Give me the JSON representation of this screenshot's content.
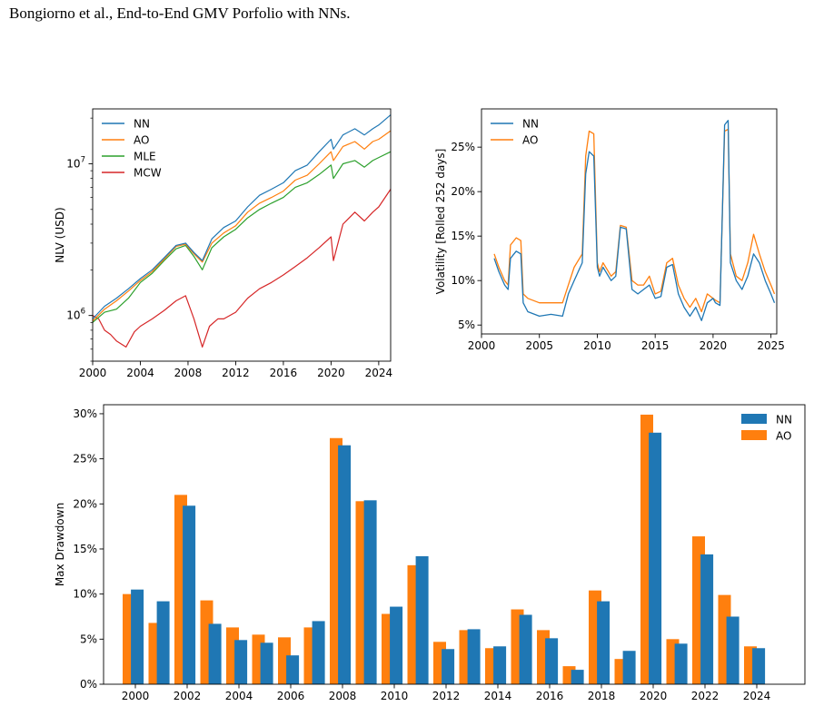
{
  "header": {
    "text": "Bongiorno et al., End-to-End GMV Porfolio with NNs."
  },
  "colors": {
    "NN": "#1f77b4",
    "AO": "#ff7f0e",
    "MLE": "#2ca02c",
    "MCW": "#d62728"
  },
  "chart_data": [
    {
      "id": "nlv",
      "type": "line",
      "ylabel": "NLV (USD)",
      "yscale": "log",
      "xlim": [
        2000,
        2025
      ],
      "ylim": [
        500000,
        23000000
      ],
      "xticks": [
        "2000",
        "2004",
        "2008",
        "2012",
        "2016",
        "2020",
        "2024"
      ],
      "yticks": [
        "10^6",
        "10^7"
      ],
      "legend_position": "top-left",
      "series": [
        {
          "name": "NN",
          "x": [
            2000,
            2001,
            2002,
            2003,
            2004,
            2005,
            2006,
            2007,
            2007.8,
            2008.5,
            2009.2,
            2010,
            2011,
            2012,
            2013,
            2014,
            2015,
            2016,
            2017,
            2018,
            2019,
            2020,
            2020.2,
            2021,
            2022,
            2022.8,
            2023.5,
            2024,
            2025
          ],
          "y": [
            950000,
            1150000,
            1300000,
            1500000,
            1750000,
            2000000,
            2400000,
            2900000,
            3000000,
            2600000,
            2300000,
            3200000,
            3800000,
            4200000,
            5200000,
            6200000,
            6800000,
            7500000,
            9000000,
            9800000,
            12000000,
            14500000,
            12500000,
            15500000,
            17000000,
            15500000,
            17000000,
            18000000,
            21000000
          ]
        },
        {
          "name": "AO",
          "x": [
            2000,
            2001,
            2002,
            2003,
            2004,
            2005,
            2006,
            2007,
            2007.8,
            2008.5,
            2009.2,
            2010,
            2011,
            2012,
            2013,
            2014,
            2015,
            2016,
            2017,
            2018,
            2019,
            2020,
            2020.2,
            2021,
            2022,
            2022.8,
            2023.5,
            2024,
            2025
          ],
          "y": [
            920000,
            1100000,
            1250000,
            1450000,
            1700000,
            1950000,
            2350000,
            2850000,
            2950000,
            2550000,
            2250000,
            3000000,
            3500000,
            3900000,
            4800000,
            5500000,
            6000000,
            6600000,
            7800000,
            8400000,
            10000000,
            12000000,
            10500000,
            13000000,
            14000000,
            12500000,
            14000000,
            14500000,
            16500000
          ]
        },
        {
          "name": "MLE",
          "x": [
            2000,
            2001,
            2002,
            2003,
            2004,
            2005,
            2006,
            2007,
            2007.8,
            2008.5,
            2009.2,
            2010,
            2011,
            2012,
            2013,
            2014,
            2015,
            2016,
            2017,
            2018,
            2019,
            2020,
            2020.2,
            2021,
            2022,
            2022.8,
            2023.5,
            2024,
            2025
          ],
          "y": [
            900000,
            1050000,
            1100000,
            1300000,
            1650000,
            1900000,
            2300000,
            2750000,
            2900000,
            2450000,
            2000000,
            2800000,
            3300000,
            3700000,
            4400000,
            5000000,
            5500000,
            6000000,
            7000000,
            7500000,
            8500000,
            9800000,
            8000000,
            10000000,
            10500000,
            9500000,
            10500000,
            11000000,
            12000000
          ]
        },
        {
          "name": "MCW",
          "x": [
            2000,
            2000.5,
            2001,
            2001.5,
            2002,
            2002.8,
            2003.5,
            2004,
            2005,
            2006,
            2007,
            2007.8,
            2008.5,
            2009.2,
            2009.8,
            2010.5,
            2011,
            2012,
            2013,
            2014,
            2015,
            2016,
            2017,
            2018,
            2019,
            2020,
            2020.2,
            2021,
            2022,
            2022.8,
            2023.5,
            2024,
            2025
          ],
          "y": [
            1000000,
            950000,
            800000,
            750000,
            680000,
            620000,
            780000,
            850000,
            950000,
            1080000,
            1250000,
            1350000,
            950000,
            620000,
            850000,
            950000,
            950000,
            1050000,
            1300000,
            1500000,
            1650000,
            1850000,
            2100000,
            2400000,
            2800000,
            3300000,
            2300000,
            4000000,
            4800000,
            4200000,
            4800000,
            5200000,
            6800000
          ]
        }
      ]
    },
    {
      "id": "volatility",
      "type": "line",
      "ylabel": "Volatility [Rolled 252 days]",
      "xlim": [
        2000,
        2025.5
      ],
      "ylim": [
        4.0,
        29.3
      ],
      "xticks": [
        "2000",
        "2005",
        "2010",
        "2015",
        "2020",
        "2025"
      ],
      "yticks": [
        "5%",
        "10%",
        "15%",
        "20%",
        "25%"
      ],
      "legend_position": "top-left",
      "series": [
        {
          "name": "NN",
          "x": [
            2001.1,
            2001.5,
            2002,
            2002.3,
            2002.5,
            2003,
            2003.4,
            2003.6,
            2004,
            2005,
            2006,
            2007,
            2007.5,
            2008,
            2008.7,
            2009,
            2009.3,
            2009.7,
            2010,
            2010.2,
            2010.5,
            2011.2,
            2011.6,
            2012,
            2012.5,
            2013,
            2013.5,
            2014,
            2014.5,
            2015,
            2015.5,
            2016,
            2016.5,
            2017,
            2017.5,
            2018,
            2018.5,
            2019,
            2019.5,
            2020,
            2020.2,
            2020.6,
            2021,
            2021.3,
            2021.5,
            2022,
            2022.5,
            2023,
            2023.5,
            2024,
            2024.5,
            2025,
            2025.3
          ],
          "y": [
            12.5,
            11.0,
            9.5,
            9.0,
            12.5,
            13.3,
            13.0,
            7.5,
            6.5,
            6.0,
            6.2,
            6.0,
            8.5,
            10.0,
            12.0,
            22.0,
            24.5,
            24.0,
            11.5,
            10.5,
            11.5,
            10.0,
            10.5,
            16.0,
            15.8,
            9.0,
            8.5,
            9.0,
            9.5,
            8.0,
            8.2,
            11.5,
            11.8,
            8.5,
            7.0,
            6.0,
            7.0,
            5.5,
            7.5,
            8.0,
            7.5,
            7.2,
            27.5,
            28.0,
            12.0,
            10.0,
            9.0,
            10.5,
            13.0,
            12.0,
            10.0,
            8.5,
            7.5
          ]
        },
        {
          "name": "AO",
          "x": [
            2001.1,
            2001.5,
            2002,
            2002.3,
            2002.5,
            2003,
            2003.4,
            2003.6,
            2004,
            2005,
            2006,
            2007,
            2007.5,
            2008,
            2008.7,
            2009,
            2009.3,
            2009.7,
            2010,
            2010.2,
            2010.5,
            2011.2,
            2011.6,
            2012,
            2012.5,
            2013,
            2013.5,
            2014,
            2014.5,
            2015,
            2015.5,
            2016,
            2016.5,
            2017,
            2017.5,
            2018,
            2018.5,
            2019,
            2019.5,
            2020,
            2020.2,
            2020.6,
            2021,
            2021.3,
            2021.5,
            2022,
            2022.5,
            2023,
            2023.5,
            2024,
            2024.5,
            2025,
            2025.3
          ],
          "y": [
            13.0,
            11.5,
            10.0,
            9.5,
            14.0,
            14.8,
            14.5,
            8.5,
            8.0,
            7.5,
            7.5,
            7.5,
            9.5,
            11.5,
            13.0,
            24.0,
            26.8,
            26.5,
            12.0,
            11.0,
            12.0,
            10.5,
            11.0,
            16.2,
            16.0,
            10.0,
            9.5,
            9.5,
            10.5,
            8.5,
            8.8,
            12.0,
            12.5,
            9.5,
            8.0,
            7.0,
            8.0,
            6.5,
            8.5,
            8.0,
            7.8,
            7.5,
            26.8,
            27.0,
            13.0,
            10.5,
            10.0,
            12.0,
            15.2,
            13.0,
            11.0,
            9.5,
            8.5
          ]
        }
      ]
    },
    {
      "id": "drawdown",
      "type": "bar",
      "ylabel": "Max Drawdown",
      "ylim": [
        0,
        31
      ],
      "yticks": [
        "0%",
        "5%",
        "10%",
        "15%",
        "20%",
        "25%",
        "30%"
      ],
      "legend_position": "top-right",
      "categories": [
        2000,
        2001,
        2002,
        2003,
        2004,
        2005,
        2006,
        2007,
        2008,
        2009,
        2010,
        2011,
        2012,
        2013,
        2014,
        2015,
        2016,
        2017,
        2018,
        2019,
        2020,
        2021,
        2022,
        2023,
        2024
      ],
      "xtick_labels": [
        "2000",
        "2002",
        "2004",
        "2006",
        "2008",
        "2010",
        "2012",
        "2014",
        "2016",
        "2018",
        "2020",
        "2022",
        "2024"
      ],
      "series": [
        {
          "name": "NN",
          "values": [
            10.5,
            9.2,
            19.8,
            6.7,
            4.9,
            4.6,
            3.2,
            7.0,
            26.5,
            20.4,
            8.6,
            14.2,
            3.9,
            6.1,
            4.2,
            7.7,
            5.1,
            1.6,
            9.2,
            3.7,
            27.9,
            4.5,
            14.4,
            7.5,
            4.0
          ]
        },
        {
          "name": "AO",
          "values": [
            10.0,
            6.8,
            21.0,
            9.3,
            6.3,
            5.5,
            5.2,
            6.3,
            27.3,
            20.3,
            7.8,
            13.2,
            4.7,
            6.0,
            4.0,
            8.3,
            6.0,
            2.0,
            10.4,
            2.8,
            29.9,
            5.0,
            16.4,
            9.9,
            4.2
          ]
        }
      ]
    }
  ]
}
